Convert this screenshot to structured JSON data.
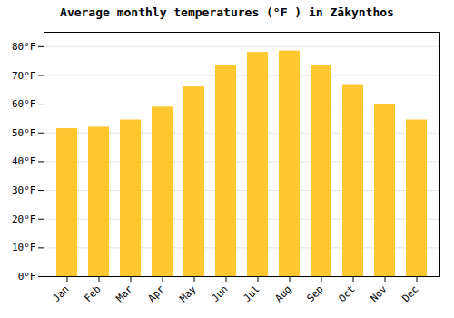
{
  "chart_data": {
    "type": "bar",
    "title": "Average monthly temperatures (°F ) in Zākynthos",
    "categories": [
      "Jan",
      "Feb",
      "Mar",
      "Apr",
      "May",
      "Jun",
      "Jul",
      "Aug",
      "Sep",
      "Oct",
      "Nov",
      "Dec"
    ],
    "values": [
      51.5,
      52.0,
      54.5,
      59.0,
      66.0,
      73.5,
      78.0,
      78.5,
      73.5,
      66.5,
      60.0,
      54.5
    ],
    "color": "#FFC830",
    "ylim": [
      0,
      85
    ],
    "yticks": [
      {
        "value": 0,
        "label": "0°F"
      },
      {
        "value": 10,
        "label": "10°F"
      },
      {
        "value": 20,
        "label": "20°F"
      },
      {
        "value": 30,
        "label": "30°F"
      },
      {
        "value": 40,
        "label": "40°F"
      },
      {
        "value": 50,
        "label": "50°F"
      },
      {
        "value": 60,
        "label": "60°F"
      },
      {
        "value": 70,
        "label": "70°F"
      },
      {
        "value": 80,
        "label": "80°F"
      }
    ],
    "grid": true
  }
}
